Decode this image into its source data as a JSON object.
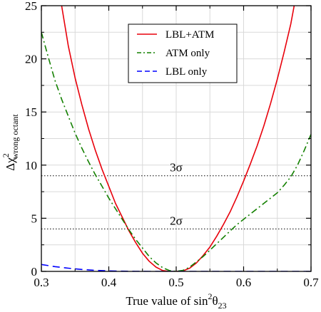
{
  "chart_data": {
    "type": "line",
    "xlabel": {
      "main": "True value of sin",
      "sup": "2",
      "theta": "θ",
      "sub": "23"
    },
    "ylabel": {
      "delta": "Δχ",
      "sup": "2",
      "sub": "wrong octant"
    },
    "xlim": [
      0.3,
      0.7
    ],
    "ylim": [
      0,
      25
    ],
    "x_ticks": [
      0.3,
      0.4,
      0.5,
      0.6,
      0.7
    ],
    "x_tick_labels": [
      "0.3",
      "0.4",
      "0.5",
      "0.6",
      "0.7"
    ],
    "y_ticks": [
      0,
      5,
      10,
      15,
      20,
      25
    ],
    "y_tick_labels": [
      "0",
      "5",
      "10",
      "15",
      "20",
      "25"
    ],
    "grid": true,
    "legend_position": "top-center",
    "series": [
      {
        "name": "LBL+ATM",
        "color": "#e8000b",
        "style": "solid",
        "x": [
          0.33,
          0.34,
          0.35,
          0.36,
          0.37,
          0.38,
          0.39,
          0.4,
          0.41,
          0.42,
          0.43,
          0.44,
          0.45,
          0.46,
          0.47,
          0.48,
          0.49,
          0.5,
          0.51,
          0.52,
          0.53,
          0.54,
          0.55,
          0.56,
          0.57,
          0.58,
          0.59,
          0.6,
          0.61,
          0.62,
          0.63,
          0.64,
          0.65,
          0.66,
          0.67,
          0.675
        ],
        "y": [
          25.0,
          21.2,
          18.2,
          15.7,
          13.4,
          11.4,
          9.6,
          8.0,
          6.4,
          5.1,
          3.8,
          2.7,
          1.7,
          0.95,
          0.4,
          0.08,
          0.0,
          0.0,
          0.05,
          0.3,
          0.8,
          1.5,
          2.3,
          3.3,
          4.4,
          5.6,
          7.0,
          8.5,
          10.1,
          11.8,
          13.7,
          15.8,
          18.1,
          20.6,
          23.3,
          25.0
        ]
      },
      {
        "name": "ATM only",
        "color": "#138000",
        "style": "dash-dot",
        "x": [
          0.3,
          0.31,
          0.32,
          0.33,
          0.34,
          0.35,
          0.36,
          0.37,
          0.38,
          0.39,
          0.4,
          0.41,
          0.42,
          0.43,
          0.44,
          0.45,
          0.46,
          0.47,
          0.48,
          0.49,
          0.5,
          0.51,
          0.52,
          0.53,
          0.54,
          0.55,
          0.56,
          0.57,
          0.58,
          0.59,
          0.6,
          0.61,
          0.62,
          0.63,
          0.64,
          0.65,
          0.66,
          0.67,
          0.68,
          0.69,
          0.7
        ],
        "y": [
          22.5,
          20.2,
          18.0,
          16.2,
          14.6,
          13.0,
          11.6,
          10.3,
          9.1,
          8.0,
          6.9,
          5.9,
          4.9,
          3.9,
          3.0,
          2.2,
          1.4,
          0.8,
          0.35,
          0.08,
          0.0,
          0.1,
          0.4,
          0.9,
          1.4,
          2.0,
          2.6,
          3.2,
          3.8,
          4.4,
          4.9,
          5.4,
          5.9,
          6.4,
          6.9,
          7.4,
          8.1,
          8.9,
          10.0,
          11.4,
          12.9
        ]
      },
      {
        "name": "LBL only",
        "color": "#0000ff",
        "style": "dashed",
        "x": [
          0.3,
          0.32,
          0.34,
          0.36,
          0.38,
          0.4,
          0.42,
          0.44,
          0.46,
          0.48,
          0.5,
          0.52,
          0.54,
          0.56,
          0.58,
          0.6,
          0.62,
          0.64,
          0.66,
          0.68,
          0.7
        ],
        "y": [
          0.65,
          0.45,
          0.3,
          0.18,
          0.1,
          0.05,
          0.02,
          0.01,
          0.0,
          0.0,
          0.0,
          0.0,
          0.0,
          0.0,
          0.0,
          0.0,
          0.0,
          0.0,
          0.0,
          0.0,
          0.0
        ]
      }
    ],
    "reference_lines": [
      {
        "y": 9,
        "label": "3σ"
      },
      {
        "y": 4,
        "label": "2σ"
      }
    ]
  }
}
